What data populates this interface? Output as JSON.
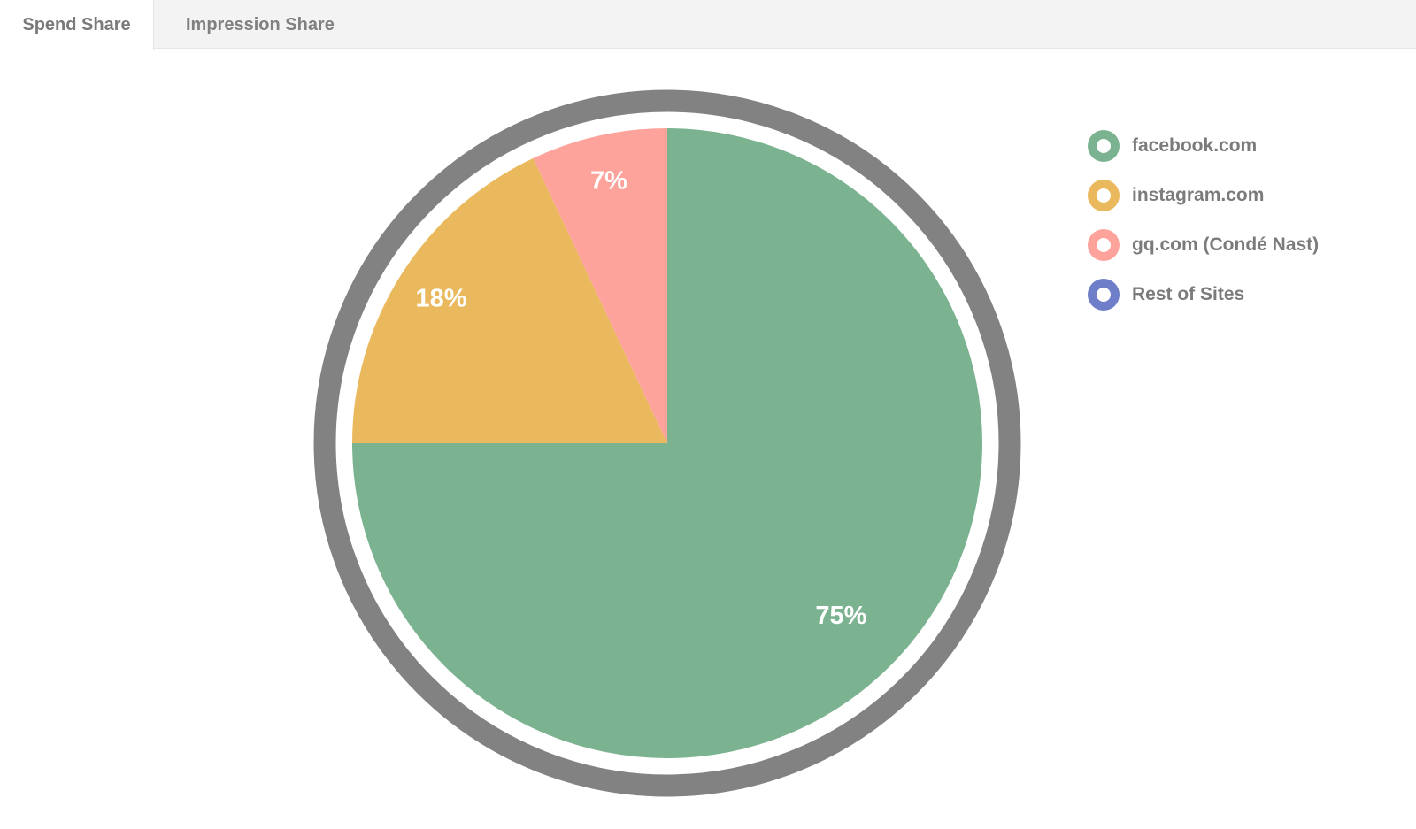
{
  "tabs": [
    {
      "label": "Spend Share",
      "active": true
    },
    {
      "label": "Impression Share",
      "active": false
    }
  ],
  "chart_data": {
    "type": "pie",
    "title": "",
    "categories": [
      "facebook.com",
      "instagram.com",
      "gq.com (Condé Nast)",
      "Rest of Sites"
    ],
    "values": [
      75,
      18,
      7,
      0
    ],
    "data_labels": [
      "75%",
      "18%",
      "7%",
      ""
    ],
    "colors": [
      "#7bb391",
      "#eab95e",
      "#fea39b",
      "#6f7ec9"
    ],
    "ring_color": "#828282",
    "legend_position": "right"
  }
}
